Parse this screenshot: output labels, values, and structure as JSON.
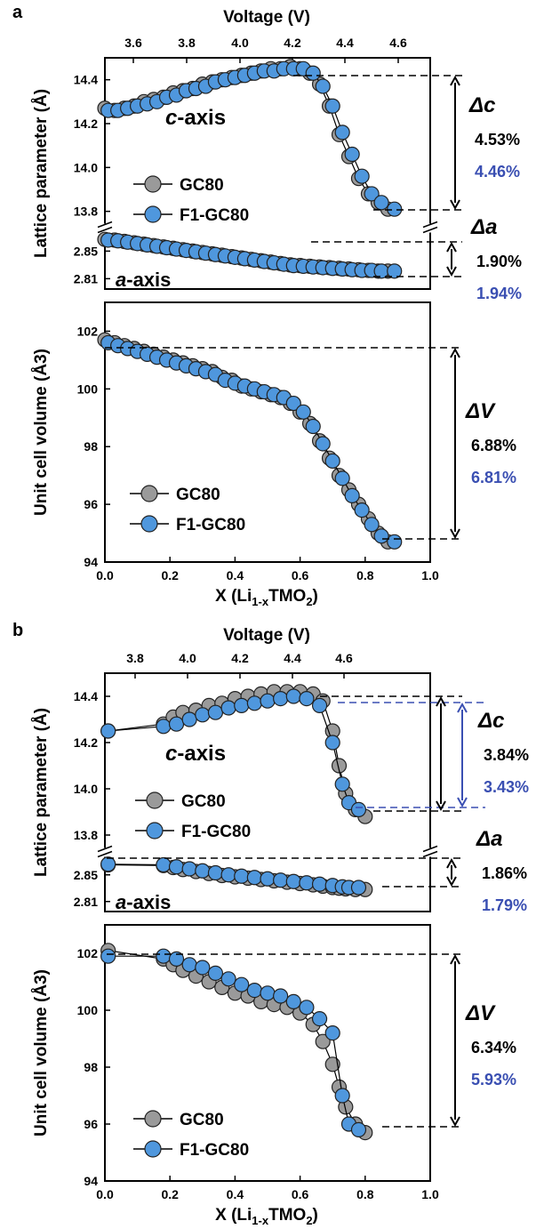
{
  "colors": {
    "gc80": "#9a9a9a",
    "f1gc80": "#4f97dd",
    "blue_text": "#3a4fb2",
    "black": "#000000"
  },
  "chart_data": [
    {
      "panel": "a",
      "type": "scatter",
      "top_xlabel": "Voltage (V)",
      "top_xticks": [
        "3.6",
        "3.8",
        "4.0",
        "4.2",
        "4.4",
        "4.6"
      ],
      "xlabel": "X (Li1-xTMO2)",
      "xticks": [
        "0.0",
        "0.2",
        "0.4",
        "0.6",
        "0.8",
        "1.0"
      ],
      "xlim": [
        0,
        1.0
      ],
      "lattice_ylabel": "Lattice parameter (Å)",
      "c_axis": {
        "label": "c-axis",
        "ylim": [
          13.75,
          14.5
        ],
        "yticks": [
          "14.4",
          "14.2",
          "14.0",
          "13.8"
        ],
        "series": [
          {
            "name": "GC80",
            "x": [
              0.0,
              0.03,
              0.06,
              0.09,
              0.12,
              0.15,
              0.18,
              0.21,
              0.24,
              0.27,
              0.3,
              0.33,
              0.36,
              0.39,
              0.42,
              0.45,
              0.48,
              0.51,
              0.54,
              0.57,
              0.6,
              0.63,
              0.66,
              0.69,
              0.72,
              0.75,
              0.78,
              0.81,
              0.84,
              0.87
            ],
            "y": [
              14.27,
              14.26,
              14.27,
              14.28,
              14.3,
              14.31,
              14.32,
              14.34,
              14.35,
              14.36,
              14.38,
              14.39,
              14.4,
              14.41,
              14.42,
              14.43,
              14.44,
              14.45,
              14.45,
              14.46,
              14.45,
              14.43,
              14.38,
              14.28,
              14.15,
              14.05,
              13.95,
              13.88,
              13.84,
              13.81
            ]
          },
          {
            "name": "F1-GC80",
            "x": [
              0.01,
              0.04,
              0.07,
              0.1,
              0.13,
              0.16,
              0.19,
              0.22,
              0.25,
              0.28,
              0.31,
              0.34,
              0.37,
              0.4,
              0.43,
              0.46,
              0.49,
              0.52,
              0.55,
              0.58,
              0.61,
              0.64,
              0.67,
              0.7,
              0.73,
              0.76,
              0.79,
              0.82,
              0.85,
              0.89
            ],
            "y": [
              14.26,
              14.26,
              14.27,
              14.28,
              14.29,
              14.3,
              14.32,
              14.33,
              14.35,
              14.36,
              14.37,
              14.39,
              14.4,
              14.41,
              14.42,
              14.43,
              14.44,
              14.44,
              14.45,
              14.45,
              14.45,
              14.43,
              14.37,
              14.28,
              14.16,
              14.06,
              13.96,
              13.88,
              13.84,
              13.81
            ]
          }
        ],
        "label_fmt": "c"
      },
      "a_axis": {
        "label": "a-axis",
        "ylim": [
          2.795,
          2.875
        ],
        "yticks": [
          "2.85",
          "2.81"
        ],
        "series": [
          {
            "name": "GC80",
            "x": [
              0.0,
              0.03,
              0.06,
              0.09,
              0.12,
              0.15,
              0.18,
              0.21,
              0.24,
              0.27,
              0.3,
              0.33,
              0.36,
              0.39,
              0.42,
              0.45,
              0.48,
              0.51,
              0.54,
              0.57,
              0.6,
              0.63,
              0.66,
              0.69,
              0.72,
              0.75,
              0.78,
              0.81,
              0.84,
              0.87
            ],
            "y": [
              2.867,
              2.866,
              2.864,
              2.862,
              2.86,
              2.858,
              2.856,
              2.854,
              2.852,
              2.85,
              2.848,
              2.846,
              2.844,
              2.842,
              2.84,
              2.838,
              2.836,
              2.834,
              2.832,
              2.83,
              2.829,
              2.828,
              2.827,
              2.826,
              2.825,
              2.824,
              2.823,
              2.822,
              2.821,
              2.821
            ]
          },
          {
            "name": "F1-GC80",
            "x": [
              0.01,
              0.04,
              0.07,
              0.1,
              0.13,
              0.16,
              0.19,
              0.22,
              0.25,
              0.28,
              0.31,
              0.34,
              0.37,
              0.4,
              0.43,
              0.46,
              0.49,
              0.52,
              0.55,
              0.58,
              0.61,
              0.64,
              0.67,
              0.7,
              0.73,
              0.76,
              0.79,
              0.82,
              0.85,
              0.89
            ],
            "y": [
              2.866,
              2.865,
              2.863,
              2.861,
              2.859,
              2.857,
              2.855,
              2.853,
              2.851,
              2.849,
              2.847,
              2.845,
              2.843,
              2.841,
              2.839,
              2.837,
              2.835,
              2.833,
              2.831,
              2.829,
              2.828,
              2.827,
              2.826,
              2.825,
              2.824,
              2.823,
              2.822,
              2.822,
              2.821,
              2.821
            ]
          }
        ]
      },
      "volume": {
        "ylabel": "Unit cell volume (Å3)",
        "ylim": [
          94,
          103
        ],
        "yticks": [
          "102",
          "100",
          "98",
          "96",
          "94"
        ],
        "series": [
          {
            "name": "GC80",
            "x": [
              0.0,
              0.03,
              0.06,
              0.09,
              0.12,
              0.15,
              0.18,
              0.21,
              0.24,
              0.27,
              0.3,
              0.33,
              0.36,
              0.39,
              0.42,
              0.45,
              0.48,
              0.51,
              0.54,
              0.57,
              0.6,
              0.63,
              0.66,
              0.69,
              0.72,
              0.75,
              0.78,
              0.81,
              0.84,
              0.87
            ],
            "y": [
              101.7,
              101.6,
              101.5,
              101.4,
              101.3,
              101.2,
              101.1,
              101.0,
              100.9,
              100.8,
              100.7,
              100.6,
              100.4,
              100.3,
              100.1,
              100.0,
              99.9,
              99.8,
              99.7,
              99.5,
              99.2,
              98.8,
              98.2,
              97.6,
              97.0,
              96.5,
              96.0,
              95.5,
              95.0,
              94.7
            ]
          },
          {
            "name": "F1-GC80",
            "x": [
              0.01,
              0.04,
              0.07,
              0.1,
              0.13,
              0.16,
              0.19,
              0.22,
              0.25,
              0.28,
              0.31,
              0.34,
              0.37,
              0.4,
              0.43,
              0.46,
              0.49,
              0.52,
              0.55,
              0.58,
              0.61,
              0.64,
              0.67,
              0.7,
              0.73,
              0.76,
              0.79,
              0.82,
              0.85,
              0.89
            ],
            "y": [
              101.6,
              101.5,
              101.4,
              101.3,
              101.2,
              101.1,
              101.0,
              100.9,
              100.8,
              100.7,
              100.6,
              100.5,
              100.3,
              100.2,
              100.1,
              100.0,
              99.9,
              99.8,
              99.7,
              99.5,
              99.2,
              98.7,
              98.1,
              97.5,
              96.9,
              96.3,
              95.8,
              95.3,
              94.9,
              94.7
            ]
          }
        ]
      },
      "legend": [
        "GC80",
        "F1-GC80"
      ],
      "annotations": {
        "delta_c": {
          "label": "Δc",
          "gc80": "4.53%",
          "f1gc80": "4.46%"
        },
        "delta_a": {
          "label": "Δa",
          "gc80": "1.90%",
          "f1gc80": "1.94%"
        },
        "delta_v": {
          "label": "ΔV",
          "gc80": "6.88%",
          "f1gc80": "6.81%"
        }
      }
    },
    {
      "panel": "b",
      "type": "scatter",
      "top_xlabel": "Voltage (V)",
      "top_xticks": [
        "3.8",
        "4.0",
        "4.2",
        "4.4",
        "4.6"
      ],
      "xlabel": "X (Li1-xTMO2)",
      "xticks": [
        "0.0",
        "0.2",
        "0.4",
        "0.6",
        "0.8",
        "1.0"
      ],
      "xlim": [
        0,
        1.0
      ],
      "lattice_ylabel": "Lattice parameter (Å)",
      "c_axis": {
        "label": "c-axis",
        "ylim": [
          13.75,
          14.5
        ],
        "yticks": [
          "14.4",
          "14.2",
          "14.0",
          "13.8"
        ],
        "series": [
          {
            "name": "GC80",
            "x": [
              0.01,
              0.18,
              0.21,
              0.24,
              0.28,
              0.32,
              0.36,
              0.4,
              0.44,
              0.48,
              0.52,
              0.56,
              0.6,
              0.64,
              0.67,
              0.7,
              0.72,
              0.74,
              0.77,
              0.8
            ],
            "y": [
              14.25,
              14.28,
              14.31,
              14.33,
              14.34,
              14.36,
              14.37,
              14.39,
              14.4,
              14.41,
              14.42,
              14.42,
              14.42,
              14.41,
              14.38,
              14.25,
              14.1,
              13.98,
              13.91,
              13.88
            ]
          },
          {
            "name": "F1-GC80",
            "x": [
              0.01,
              0.18,
              0.22,
              0.26,
              0.3,
              0.34,
              0.38,
              0.42,
              0.46,
              0.5,
              0.54,
              0.58,
              0.62,
              0.66,
              0.7,
              0.73,
              0.75,
              0.78
            ],
            "y": [
              14.25,
              14.27,
              14.28,
              14.3,
              14.32,
              14.33,
              14.35,
              14.36,
              14.37,
              14.38,
              14.39,
              14.4,
              14.39,
              14.36,
              14.2,
              14.02,
              13.94,
              13.91
            ]
          }
        ]
      },
      "a_axis": {
        "label": "a-axis",
        "ylim": [
          2.795,
          2.875
        ],
        "yticks": [
          "2.85",
          "2.81"
        ],
        "series": [
          {
            "name": "GC80",
            "x": [
              0.01,
              0.18,
              0.21,
              0.24,
              0.28,
              0.32,
              0.36,
              0.4,
              0.44,
              0.48,
              0.52,
              0.56,
              0.6,
              0.64,
              0.67,
              0.7,
              0.72,
              0.74,
              0.77,
              0.8
            ],
            "y": [
              2.865,
              2.864,
              2.861,
              2.858,
              2.855,
              2.852,
              2.849,
              2.847,
              2.845,
              2.843,
              2.841,
              2.839,
              2.837,
              2.835,
              2.833,
              2.831,
              2.83,
              2.829,
              2.828,
              2.828
            ]
          },
          {
            "name": "F1-GC80",
            "x": [
              0.01,
              0.18,
              0.22,
              0.26,
              0.3,
              0.34,
              0.38,
              0.42,
              0.46,
              0.5,
              0.54,
              0.58,
              0.62,
              0.66,
              0.7,
              0.73,
              0.75,
              0.78
            ],
            "y": [
              2.866,
              2.865,
              2.862,
              2.859,
              2.856,
              2.853,
              2.85,
              2.848,
              2.846,
              2.844,
              2.842,
              2.84,
              2.838,
              2.836,
              2.834,
              2.832,
              2.831,
              2.831
            ]
          }
        ]
      },
      "volume": {
        "ylabel": "Unit cell volume (Å3)",
        "ylim": [
          94,
          103
        ],
        "yticks": [
          "102",
          "100",
          "98",
          "96",
          "94"
        ],
        "series": [
          {
            "name": "GC80",
            "x": [
              0.01,
              0.18,
              0.21,
              0.24,
              0.28,
              0.32,
              0.36,
              0.4,
              0.44,
              0.48,
              0.52,
              0.56,
              0.6,
              0.64,
              0.67,
              0.7,
              0.72,
              0.74,
              0.77,
              0.8
            ],
            "y": [
              102.1,
              101.8,
              101.6,
              101.4,
              101.2,
              101.0,
              100.8,
              100.6,
              100.5,
              100.3,
              100.2,
              100.1,
              99.9,
              99.5,
              98.9,
              98.1,
              97.3,
              96.6,
              96.0,
              95.7
            ]
          },
          {
            "name": "F1-GC80",
            "x": [
              0.01,
              0.18,
              0.22,
              0.26,
              0.3,
              0.34,
              0.38,
              0.42,
              0.46,
              0.5,
              0.54,
              0.58,
              0.62,
              0.66,
              0.7,
              0.73,
              0.75,
              0.78
            ],
            "y": [
              101.9,
              101.9,
              101.8,
              101.6,
              101.5,
              101.3,
              101.1,
              100.9,
              100.7,
              100.6,
              100.5,
              100.3,
              100.1,
              99.7,
              99.2,
              97.0,
              96.0,
              95.8
            ]
          }
        ]
      },
      "legend": [
        "GC80",
        "F1-GC80"
      ],
      "annotations": {
        "delta_c": {
          "label": "Δc",
          "gc80": "3.84%",
          "f1gc80": "3.43%"
        },
        "delta_a": {
          "label": "Δa",
          "gc80": "1.86%",
          "f1gc80": "1.79%"
        },
        "delta_v": {
          "label": "ΔV",
          "gc80": "6.34%",
          "f1gc80": "5.93%"
        }
      }
    }
  ]
}
